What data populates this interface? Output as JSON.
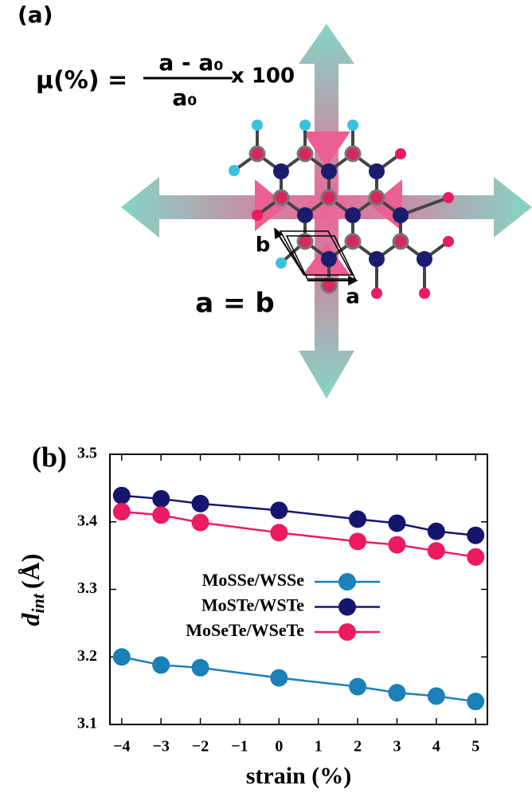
{
  "panel_a": {
    "label": "(a)",
    "formula_left": "μ(%) =",
    "numerator": "a - a₀",
    "denominator": "a₀",
    "factor": "x 100",
    "equality": "a = b",
    "vector_b": "b",
    "vector_a": "a"
  },
  "chart_data": {
    "type": "line",
    "panel_label": "(b)",
    "xlabel": "strain (%)",
    "ylabel": {
      "symbol": "d",
      "subscript": "int",
      "unit": "(Å)"
    },
    "x": [
      -4,
      -3,
      -2,
      0,
      2,
      3,
      4,
      5
    ],
    "series": [
      {
        "name": "MoSSe/WSSe",
        "color": "#1b7fb8",
        "values": [
          3.2,
          3.188,
          3.184,
          3.169,
          3.156,
          3.147,
          3.142,
          3.134
        ]
      },
      {
        "name": "MoSTe/WSTe",
        "color": "#15156e",
        "values": [
          3.439,
          3.434,
          3.427,
          3.417,
          3.404,
          3.398,
          3.386,
          3.38
        ]
      },
      {
        "name": "MoSeTe/WSeTe",
        "color": "#ec1a5e",
        "values": [
          3.415,
          3.41,
          3.399,
          3.384,
          3.371,
          3.366,
          3.357,
          3.348
        ]
      }
    ],
    "xlim": [
      -4.3,
      5.3
    ],
    "ylim": [
      3.1,
      3.5
    ],
    "xticks": [
      {
        "value": -4,
        "label": "−4"
      },
      {
        "value": -3,
        "label": "−3"
      },
      {
        "value": -2,
        "label": "−2"
      },
      {
        "value": -1,
        "label": "−1"
      },
      0,
      1,
      2,
      3,
      4,
      5
    ],
    "yticks": [
      3.1,
      3.2,
      3.3,
      3.4,
      3.5
    ],
    "grid": false
  }
}
